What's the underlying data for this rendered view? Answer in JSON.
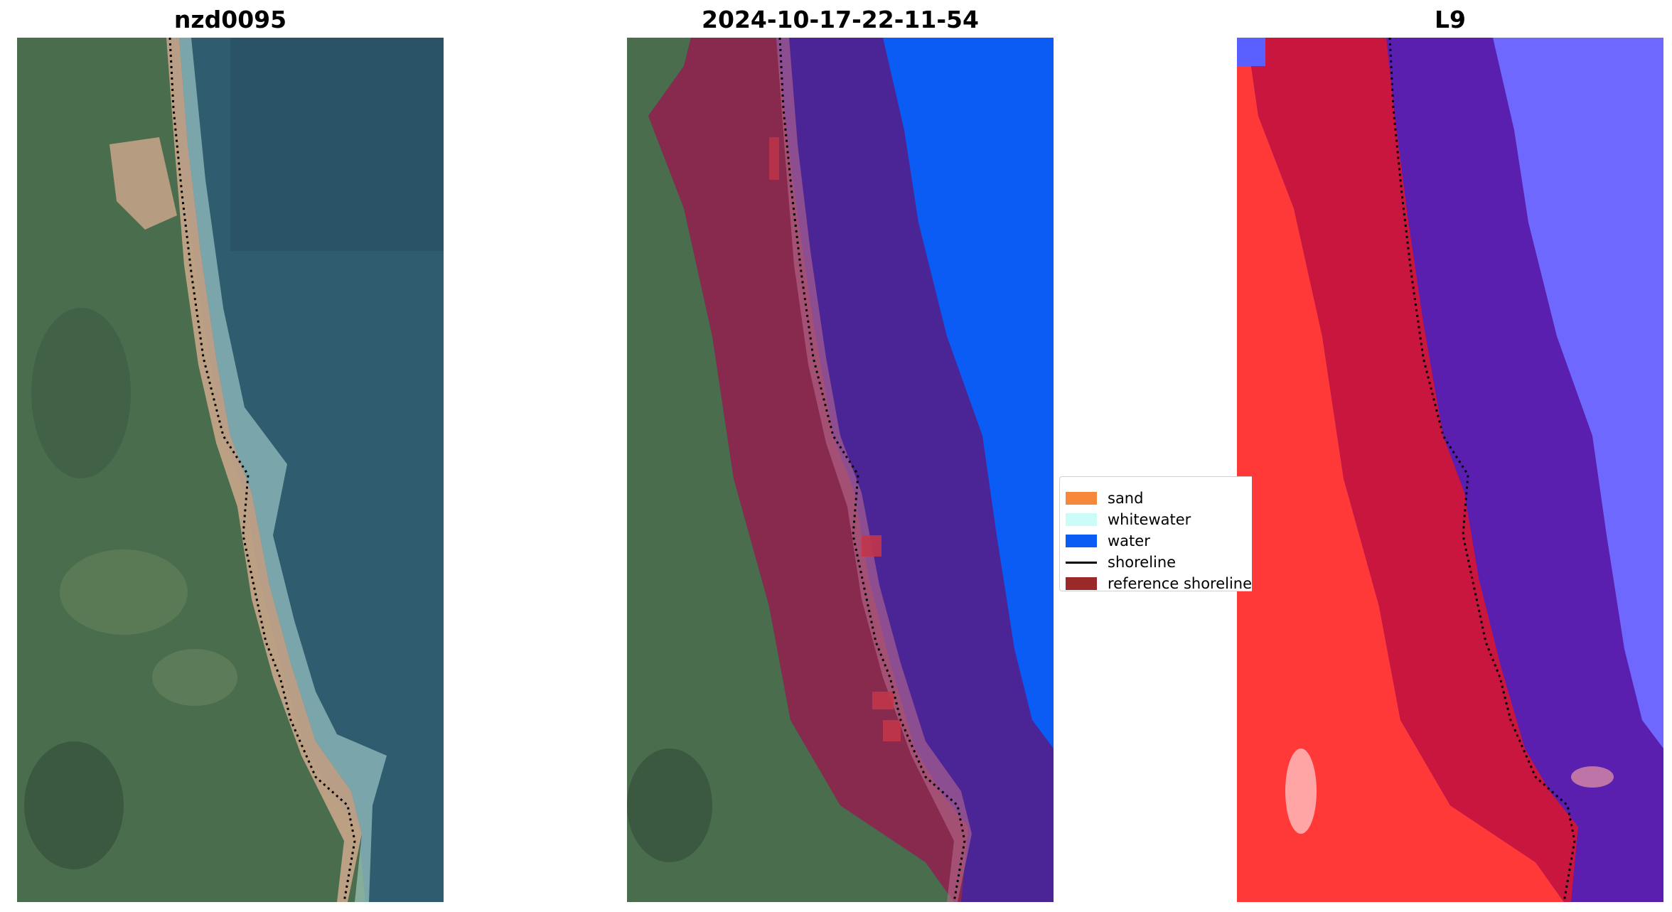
{
  "panels": [
    {
      "title": "nzd0095"
    },
    {
      "title": "2024-10-17-22-11-54"
    },
    {
      "title": "L9"
    }
  ],
  "legend": {
    "items": [
      {
        "label": "sand",
        "color": "#f5883a",
        "kind": "patch"
      },
      {
        "label": "whitewater",
        "color": "#ccfcf7",
        "kind": "patch"
      },
      {
        "label": "water",
        "color": "#0a5cf5",
        "kind": "patch"
      },
      {
        "label": "shoreline",
        "color": "#000000",
        "kind": "line"
      },
      {
        "label": "reference shoreline",
        "color": "#9a2a2a",
        "kind": "patch"
      }
    ]
  },
  "colors": {
    "land_green": "#4a6e4d",
    "sea_blue": "#2f5c6e",
    "beach_sand": "#c9a58a",
    "water_class": "#0a5cf5",
    "buffer_land_overlay": "#8b2a4a",
    "buffer_sea_overlay": "#4b2495",
    "index_land_red": "#ff3838",
    "index_buffer_crimson": "#c8163f",
    "index_sea_purple": "#5a1fae",
    "index_water_blue": "#6f68ff"
  }
}
